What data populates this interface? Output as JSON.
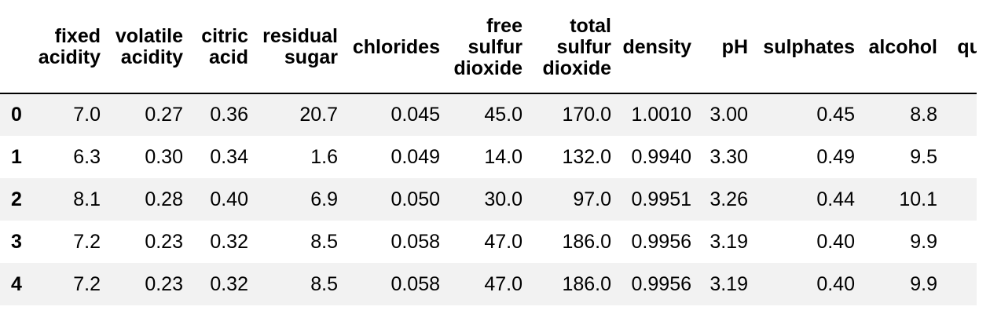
{
  "table": {
    "index_header": "",
    "columns": [
      "fixed acidity",
      "volatile acidity",
      "citric acid",
      "residual sugar",
      "chlorides",
      "free sulfur dioxide",
      "total sulfur dioxide",
      "density",
      "pH",
      "sulphates",
      "alcohol",
      "quality"
    ],
    "rows": [
      {
        "index": "0",
        "values": [
          "7.0",
          "0.27",
          "0.36",
          "20.7",
          "0.045",
          "45.0",
          "170.0",
          "1.0010",
          "3.00",
          "0.45",
          "8.8",
          ""
        ]
      },
      {
        "index": "1",
        "values": [
          "6.3",
          "0.30",
          "0.34",
          "1.6",
          "0.049",
          "14.0",
          "132.0",
          "0.9940",
          "3.30",
          "0.49",
          "9.5",
          ""
        ]
      },
      {
        "index": "2",
        "values": [
          "8.1",
          "0.28",
          "0.40",
          "6.9",
          "0.050",
          "30.0",
          "97.0",
          "0.9951",
          "3.26",
          "0.44",
          "10.1",
          ""
        ]
      },
      {
        "index": "3",
        "values": [
          "7.2",
          "0.23",
          "0.32",
          "8.5",
          "0.058",
          "47.0",
          "186.0",
          "0.9956",
          "3.19",
          "0.40",
          "9.9",
          ""
        ]
      },
      {
        "index": "4",
        "values": [
          "7.2",
          "0.23",
          "0.32",
          "8.5",
          "0.058",
          "47.0",
          "186.0",
          "0.9956",
          "3.19",
          "0.40",
          "9.9",
          ""
        ]
      }
    ]
  },
  "colors": {
    "row_stripe": "#f2f2f2",
    "header_rule": "#000000",
    "text": "#000000",
    "background": "#ffffff"
  }
}
